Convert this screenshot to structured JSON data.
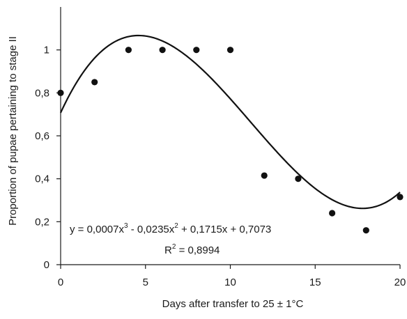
{
  "chart_data": {
    "type": "scatter",
    "title": "",
    "xlabel": "Days after transfer to 25 ± 1°C",
    "ylabel": "Proportion of pupae pertaining to stage II",
    "xlim": [
      0,
      20
    ],
    "ylim": [
      0,
      1.2
    ],
    "x_ticks": [
      0,
      5,
      10,
      15,
      20
    ],
    "x_tick_labels": [
      "0",
      "5",
      "10",
      "15",
      "20"
    ],
    "y_ticks": [
      0,
      0.2,
      0.4,
      0.6,
      0.8,
      1
    ],
    "y_tick_labels": [
      "0",
      "0,2",
      "0,4",
      "0,6",
      "0,8",
      "1"
    ],
    "grid": false,
    "series": [
      {
        "kind": "points",
        "x": [
          0,
          2,
          4,
          6,
          8,
          10,
          12,
          14,
          16,
          18,
          20
        ],
        "y": [
          0.8,
          0.85,
          1.0,
          1.0,
          1.0,
          1.0,
          0.415,
          0.4,
          0.24,
          0.16,
          0.315
        ]
      },
      {
        "kind": "trendline",
        "fit": "cubic",
        "coefficients": [
          0.7073,
          0.1715,
          -0.0235,
          0.0007
        ]
      }
    ],
    "annotations": {
      "equation": {
        "parts": [
          "y = 0,0007x",
          "3",
          " - 0,0235x",
          "2",
          " + 0,1715x + 0,7073"
        ]
      },
      "r2": {
        "parts": [
          "R",
          "2",
          " = 0,8994"
        ]
      }
    },
    "colors": {
      "axis": "#1a1a1a",
      "points": "#111111",
      "line": "#111111"
    }
  }
}
